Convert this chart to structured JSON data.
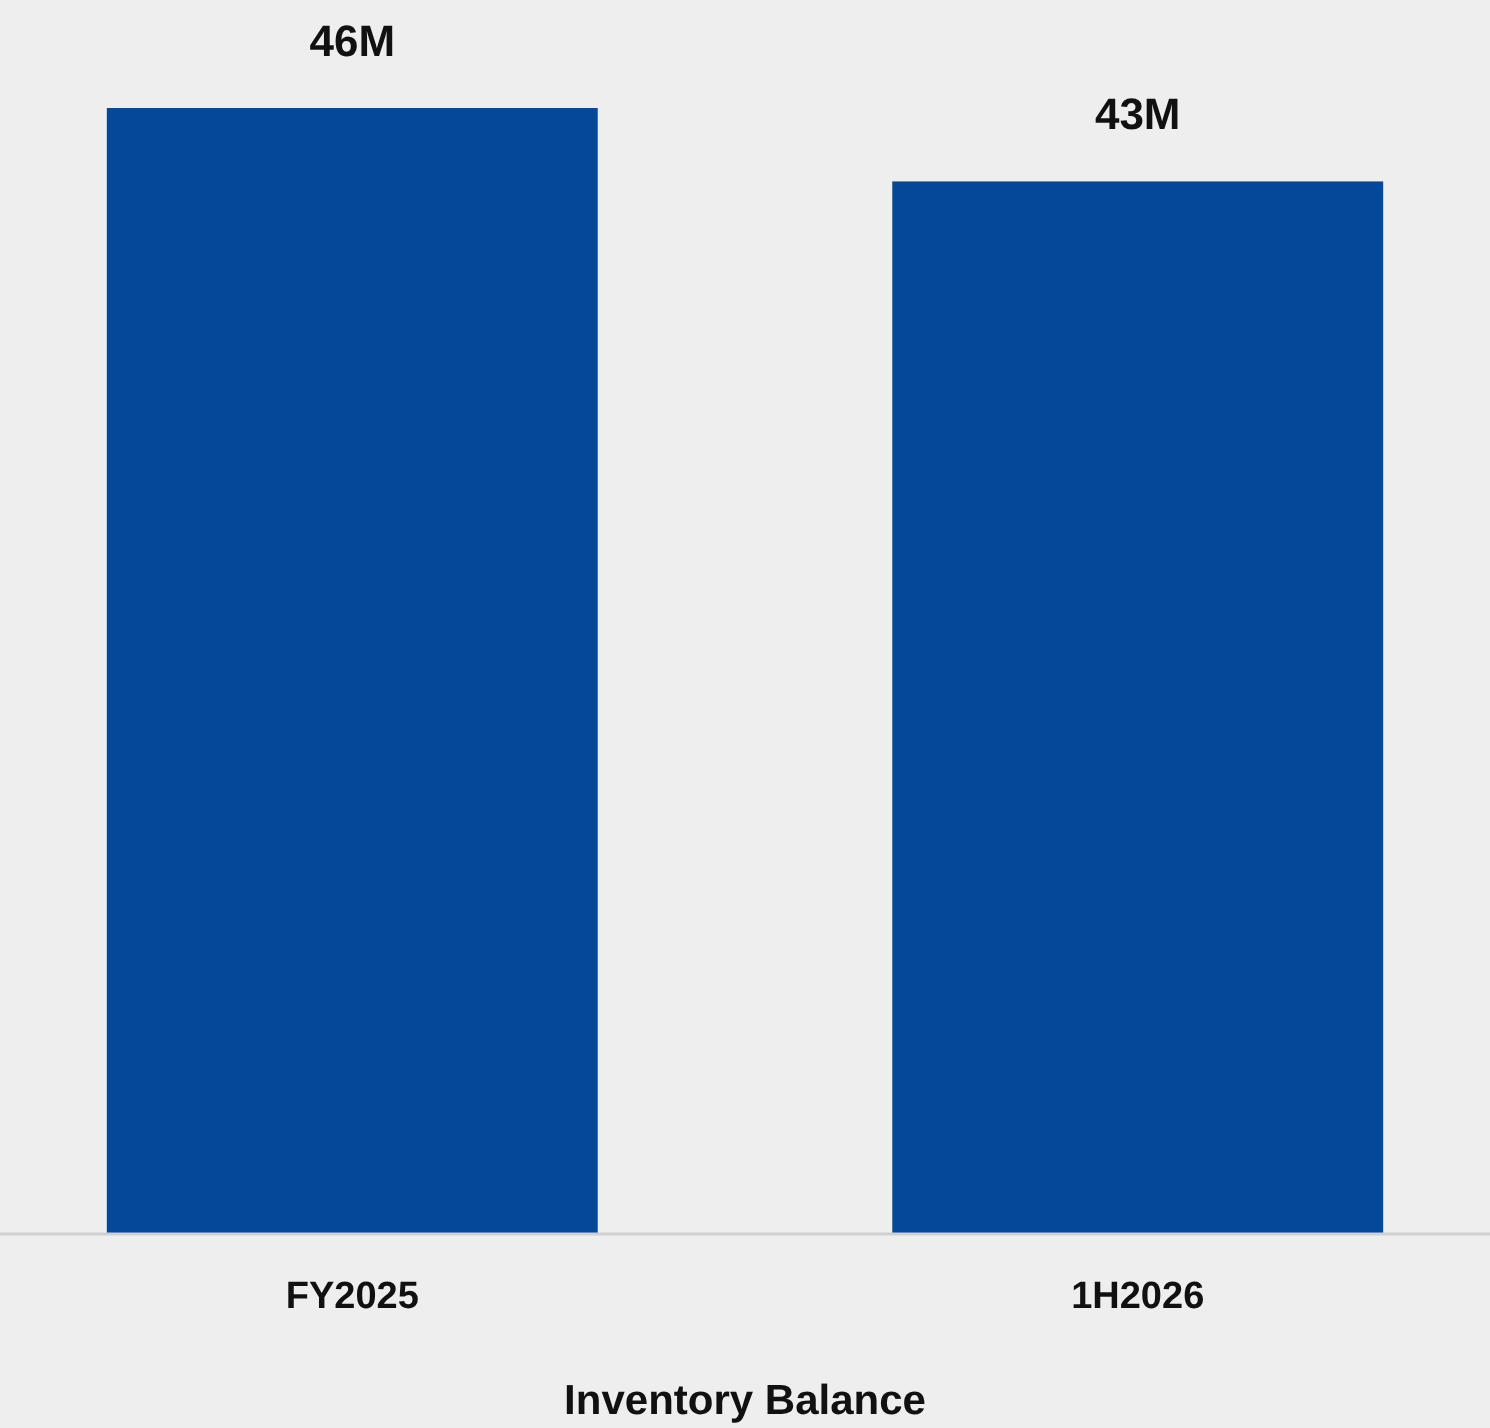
{
  "chart_data": {
    "type": "bar",
    "xlabel": "Inventory Balance",
    "categories": [
      "FY2025",
      "1H2026"
    ],
    "values": [
      46,
      43
    ],
    "value_labels": [
      "46M",
      "43M"
    ],
    "color": "#034899",
    "ylim": [
      0,
      46
    ],
    "tick_labels": "x"
  }
}
